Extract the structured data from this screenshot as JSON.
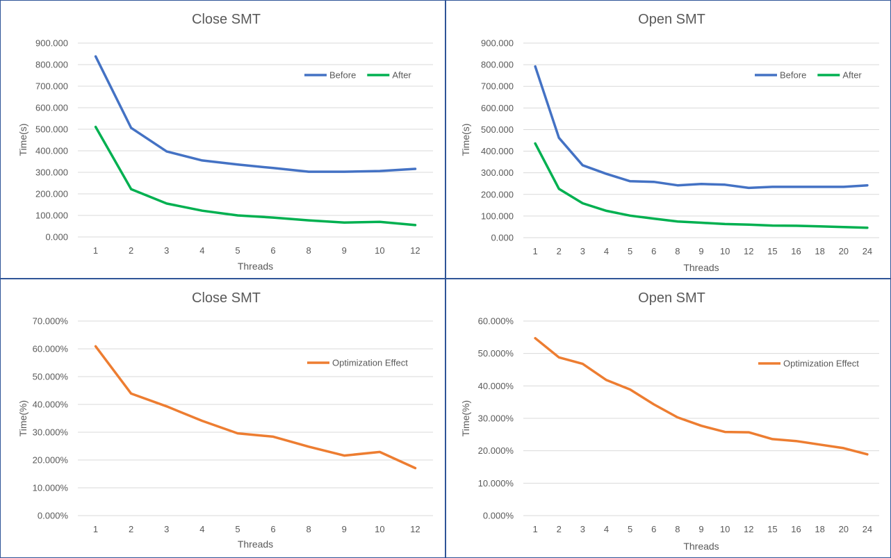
{
  "colors": {
    "before": "#4472C4",
    "after": "#00B050",
    "effect": "#ED7D31",
    "grid": "#D9D9D9",
    "border": "#2F5597"
  },
  "chart_data": [
    {
      "type": "line",
      "title": "Close SMT",
      "xlabel": "Threads",
      "ylabel": "Time(s)",
      "categories": [
        "1",
        "2",
        "3",
        "4",
        "5",
        "6",
        "8",
        "9",
        "10",
        "12"
      ],
      "y_ticks": [
        "0.000",
        "100.000",
        "200.000",
        "300.000",
        "400.000",
        "500.000",
        "600.000",
        "700.000",
        "800.000",
        "900.000"
      ],
      "ylim": [
        0,
        900
      ],
      "grid": true,
      "legend": "top-right",
      "series": [
        {
          "name": "Before",
          "color_key": "before",
          "values": [
            838,
            506,
            397,
            355,
            336,
            320,
            303,
            303,
            306,
            316
          ]
        },
        {
          "name": "After",
          "color_key": "after",
          "values": [
            511,
            222,
            155,
            122,
            100,
            90,
            77,
            67,
            70,
            55
          ]
        }
      ]
    },
    {
      "type": "line",
      "title": "Open SMT",
      "xlabel": "Threads",
      "ylabel": "Time(s)",
      "categories": [
        "1",
        "2",
        "3",
        "4",
        "5",
        "6",
        "8",
        "9",
        "10",
        "12",
        "15",
        "16",
        "18",
        "20",
        "24"
      ],
      "y_ticks": [
        "0.000",
        "100.000",
        "200.000",
        "300.000",
        "400.000",
        "500.000",
        "600.000",
        "700.000",
        "800.000",
        "900.000"
      ],
      "ylim": [
        0,
        900
      ],
      "grid": true,
      "legend": "top-right",
      "series": [
        {
          "name": "Before",
          "color_key": "before",
          "values": [
            792,
            462,
            335,
            295,
            261,
            258,
            242,
            248,
            245,
            230,
            235,
            235,
            235,
            235,
            242
          ]
        },
        {
          "name": "After",
          "color_key": "after",
          "values": [
            436,
            226,
            159,
            124,
            102,
            88,
            75,
            69,
            63,
            60,
            56,
            55,
            52,
            49,
            46
          ]
        }
      ]
    },
    {
      "type": "line",
      "title": "Close SMT",
      "xlabel": "Threads",
      "ylabel": "Time(%)",
      "categories": [
        "1",
        "2",
        "3",
        "4",
        "5",
        "6",
        "8",
        "9",
        "10",
        "12"
      ],
      "y_ticks": [
        "0.000%",
        "10.000%",
        "20.000%",
        "30.000%",
        "40.000%",
        "50.000%",
        "60.000%",
        "70.000%"
      ],
      "ylim": [
        0,
        70
      ],
      "grid": true,
      "legend": "top-right",
      "series": [
        {
          "name": "Optimization Effect",
          "color_key": "effect",
          "values": [
            60.9,
            43.9,
            39.3,
            34.1,
            29.6,
            28.4,
            24.8,
            21.6,
            22.9,
            17.1
          ]
        }
      ]
    },
    {
      "type": "line",
      "title": "Open SMT",
      "xlabel": "Threads",
      "ylabel": "Time(%)",
      "categories": [
        "1",
        "2",
        "3",
        "4",
        "5",
        "6",
        "8",
        "9",
        "10",
        "12",
        "15",
        "16",
        "18",
        "20",
        "24"
      ],
      "y_ticks": [
        "0.000%",
        "10.000%",
        "20.000%",
        "30.000%",
        "40.000%",
        "50.000%",
        "60.000%"
      ],
      "ylim": [
        0,
        60
      ],
      "grid": true,
      "legend": "top-right",
      "series": [
        {
          "name": "Optimization Effect",
          "color_key": "effect",
          "values": [
            54.7,
            48.8,
            46.8,
            41.8,
            38.9,
            34.3,
            30.3,
            27.7,
            25.8,
            25.7,
            23.6,
            23.0,
            21.9,
            20.8,
            18.9
          ]
        }
      ]
    }
  ]
}
